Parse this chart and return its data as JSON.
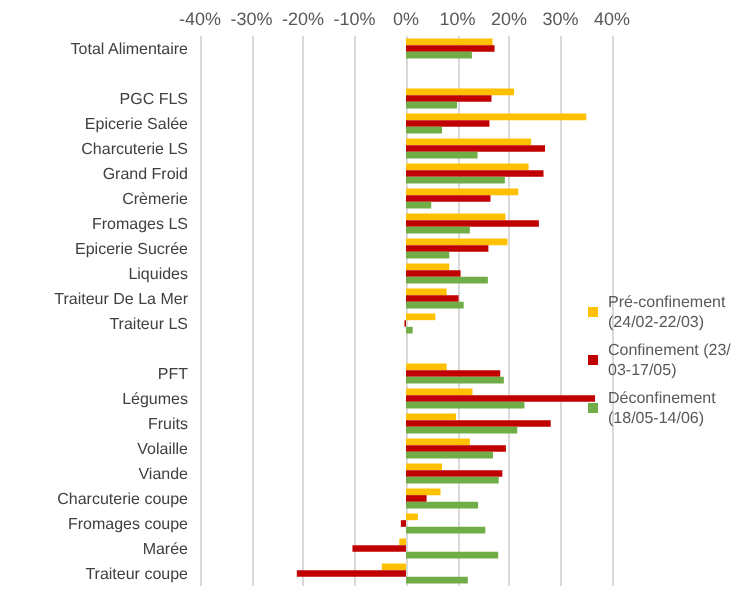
{
  "chart_data": {
    "type": "bar",
    "orientation": "horizontal",
    "categories": [
      "Total Alimentaire",
      null,
      "PGC FLS",
      "Epicerie Salée",
      "Charcuterie LS",
      "Grand Froid",
      "Crèmerie",
      "Fromages LS",
      "Epicerie Sucrée",
      "Liquides",
      "Traiteur De La Mer",
      "Traiteur LS",
      null,
      "PFT",
      "Légumes",
      "Fruits",
      "Volaille",
      "Viande",
      "Charcuterie coupe",
      "Fromages coupe",
      "Marée",
      "Traiteur coupe"
    ],
    "series": [
      {
        "name": "Pré-confinement (24/02-22/03)",
        "color": "#ffc000",
        "values": [
          16.8,
          null,
          21,
          35,
          24.3,
          23.8,
          21.8,
          19.3,
          19.7,
          8.4,
          7.9,
          5.7,
          null,
          7.9,
          12.9,
          9.7,
          12.4,
          7,
          6.7,
          2.3,
          -1.3,
          -4.7
        ]
      },
      {
        "name": "Confinement (23/03-17/05)",
        "color": "#c00000",
        "values": [
          17.2,
          null,
          16.6,
          16.2,
          27,
          26.7,
          16.4,
          25.8,
          16,
          10.6,
          10.2,
          -0.3,
          null,
          18.3,
          36.7,
          28.1,
          19.4,
          18.7,
          4,
          -1,
          -10.4,
          -21.2
        ]
      },
      {
        "name": "Déconfinement (18/05-14/06)",
        "color": "#70ad47",
        "values": [
          12.8,
          null,
          9.9,
          7,
          13.9,
          19.2,
          4.9,
          12.4,
          8.4,
          15.9,
          11.2,
          1.3,
          null,
          19,
          23,
          21.6,
          16.9,
          18,
          14,
          15.4,
          17.9,
          12
        ]
      }
    ],
    "xlim": [
      -40,
      40
    ],
    "xticks": [
      {
        "value": -40,
        "label": "-40%"
      },
      {
        "value": -30,
        "label": "-30%"
      },
      {
        "value": -20,
        "label": "-20%"
      },
      {
        "value": -10,
        "label": "-10%"
      },
      {
        "value": 0,
        "label": "0%"
      },
      {
        "value": 10,
        "label": "10%"
      },
      {
        "value": 20,
        "label": "20%"
      },
      {
        "value": 30,
        "label": "30%"
      },
      {
        "value": 40,
        "label": "40%"
      }
    ],
    "grid": "x",
    "legend": "right"
  }
}
